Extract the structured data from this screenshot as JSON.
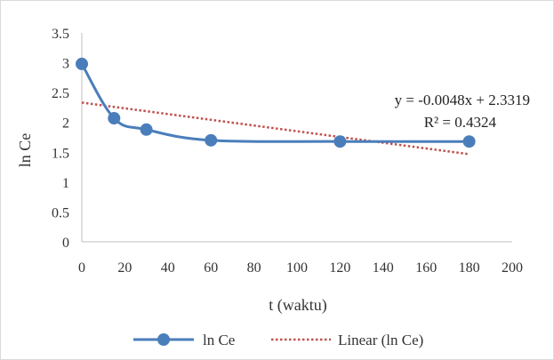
{
  "chart_data": {
    "type": "line",
    "title": "",
    "xlabel": "t (waktu)",
    "ylabel": "ln Ce",
    "xlim": [
      0,
      200
    ],
    "ylim": [
      0,
      3.5
    ],
    "x_ticks": [
      "0",
      "20",
      "40",
      "60",
      "80",
      "100",
      "120",
      "140",
      "160",
      "180",
      "200"
    ],
    "y_ticks": [
      "0",
      "0.5",
      "1",
      "1.5",
      "2",
      "2.5",
      "3",
      "3.5"
    ],
    "grid": false,
    "series": [
      {
        "name": "ln Ce",
        "color": "#4a7ebb",
        "style": "smooth line with circle markers",
        "x": [
          0,
          15,
          30,
          60,
          120,
          180
        ],
        "y": [
          2.98,
          2.07,
          1.88,
          1.7,
          1.68,
          1.68
        ]
      }
    ],
    "trendline": {
      "name": "Linear (ln Ce)",
      "color": "#c0504d",
      "style": "dotted",
      "slope": -0.0048,
      "intercept": 2.3319,
      "x_range": [
        0,
        180
      ]
    },
    "annotations": {
      "equation": "y = -0.0048x  + 2.3319",
      "r_squared": "R² = 0.4324"
    },
    "legend": {
      "position": "bottom",
      "entries": [
        "ln Ce",
        "Linear (ln Ce)"
      ]
    }
  }
}
